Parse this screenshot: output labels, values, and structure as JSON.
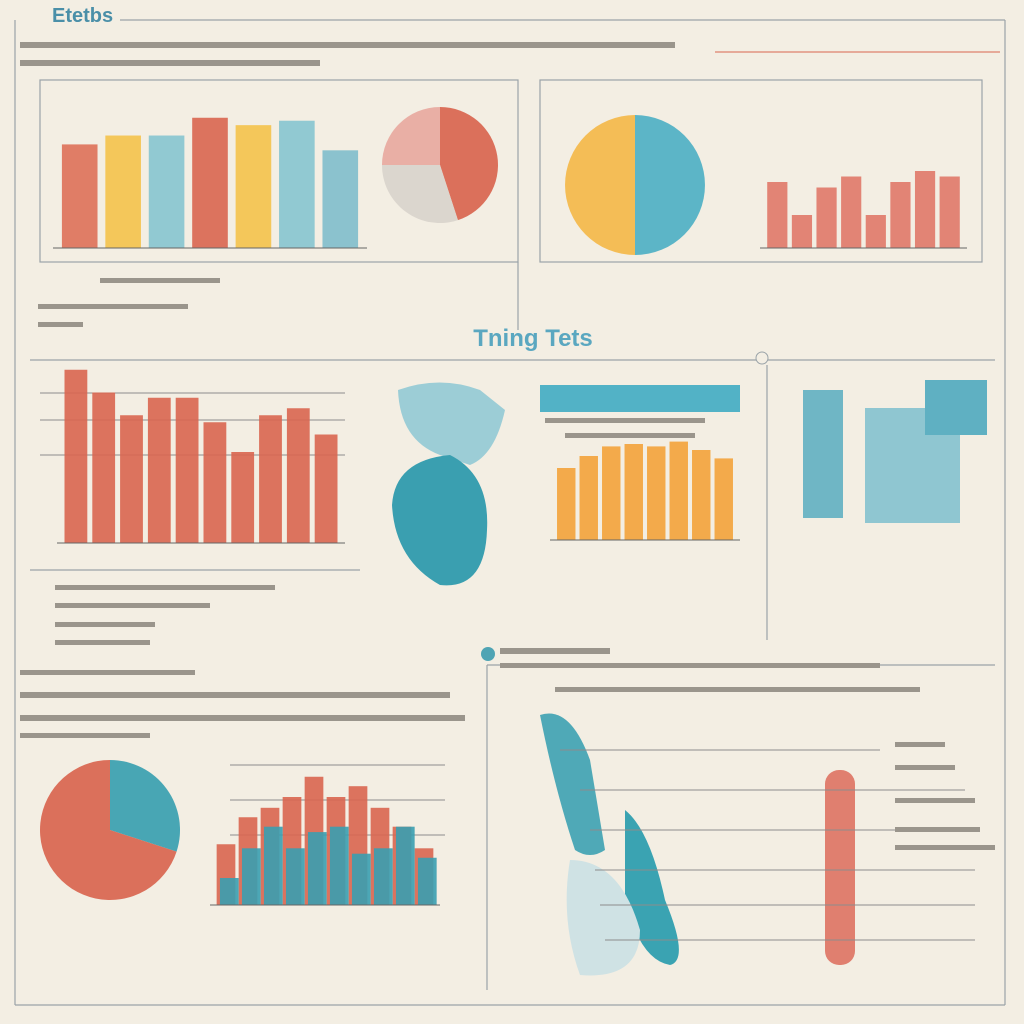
{
  "title": "Etetbs",
  "subtitle": "Tning Tets",
  "chart_data": [
    {
      "type": "bar",
      "values": [
        70,
        76,
        76,
        88,
        83,
        86,
        66
      ],
      "colors": [
        "#de7058",
        "#f4c24a",
        "#86c4cf",
        "#d9654f",
        "#f4c24a",
        "#86c4cf",
        "#7fbccb"
      ],
      "ylim": [
        0,
        100
      ]
    },
    {
      "type": "pie",
      "values": [
        45,
        30,
        25
      ],
      "colors": [
        "#d9654f",
        "#d9d4cc",
        "#e8a9a0"
      ]
    },
    {
      "type": "pie",
      "values": [
        50,
        50
      ],
      "colors": [
        "#4fb0c4",
        "#f4b84a"
      ]
    },
    {
      "type": "bar",
      "values": [
        60,
        30,
        55,
        65,
        30,
        60,
        70,
        65
      ],
      "colors": [
        "#e07868",
        "#e07868",
        "#e07868",
        "#e07868",
        "#e07868",
        "#e07868",
        "#e07868",
        "#e07868"
      ],
      "ylim": [
        0,
        100
      ]
    },
    {
      "type": "bar",
      "values": [
        99,
        86,
        73,
        83,
        83,
        69,
        52,
        73,
        77,
        62
      ],
      "colors": [
        "#d9654f",
        "#d9654f",
        "#d9654f",
        "#d9654f",
        "#d9654f",
        "#d9654f",
        "#d9654f",
        "#d9654f",
        "#d9654f",
        "#d9654f"
      ],
      "ylim": [
        0,
        100
      ]
    },
    {
      "type": "bar",
      "values": [
        60,
        70,
        78,
        80,
        78,
        82,
        75,
        68
      ],
      "colors": [
        "#f3a23a",
        "#f3a23a",
        "#f3a23a",
        "#f3a23a",
        "#f3a23a",
        "#f3a23a",
        "#f3a23a",
        "#f3a23a"
      ],
      "ylim": [
        0,
        100
      ]
    },
    {
      "type": "pie",
      "values": [
        30,
        70
      ],
      "colors": [
        "#3a9fb0",
        "#d9654f"
      ]
    },
    {
      "type": "bar",
      "ylim": [
        0,
        100
      ],
      "series": [
        {
          "color": "#d9654f",
          "values": [
            45,
            65,
            72,
            80,
            95,
            80,
            88,
            72,
            58,
            42
          ]
        },
        {
          "color": "#3a9fb0",
          "values": [
            20,
            42,
            58,
            42,
            54,
            58,
            38,
            42,
            58,
            35
          ]
        }
      ]
    }
  ]
}
